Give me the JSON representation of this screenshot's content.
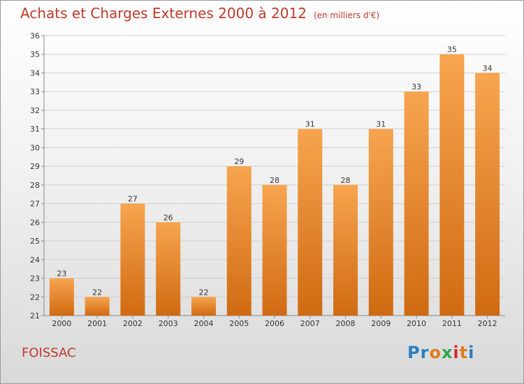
{
  "title": "Achats et Charges Externes 2000 à 2012",
  "unit": "(en milliers d'€)",
  "commune": "FOISSAC",
  "logo": "Proxiti",
  "colors": {
    "bar_top": "#f7a24e",
    "bar_bottom": "#d26b13",
    "title": "#c0392b"
  },
  "chart_data": {
    "type": "bar",
    "categories": [
      "2000",
      "2001",
      "2002",
      "2003",
      "2004",
      "2005",
      "2006",
      "2007",
      "2008",
      "2009",
      "2010",
      "2011",
      "2012"
    ],
    "values": [
      23,
      22,
      27,
      26,
      22,
      29,
      28,
      31,
      28,
      31,
      33,
      35,
      34
    ],
    "ylim": [
      21,
      36
    ],
    "yticks": [
      21,
      22,
      23,
      24,
      25,
      26,
      27,
      28,
      29,
      30,
      31,
      32,
      33,
      34,
      35,
      36
    ],
    "grid": true
  }
}
